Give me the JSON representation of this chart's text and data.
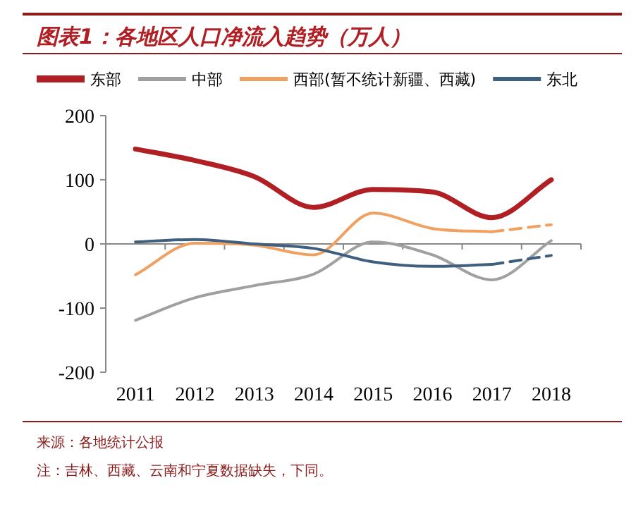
{
  "chart_data": {
    "type": "line",
    "title": "图表1：各地区人口净流入趋势（万人）",
    "categories": [
      "2011",
      "2012",
      "2013",
      "2014",
      "2015",
      "2016",
      "2017",
      "2018"
    ],
    "series": [
      {
        "name": "东部",
        "color": "#b01f24",
        "values": [
          148,
          130,
          105,
          57,
          85,
          81,
          41,
          100
        ]
      },
      {
        "name": "中部",
        "color": "#a0a0a0",
        "values": [
          -119,
          -84,
          -65,
          -47,
          3,
          -17,
          -56,
          5
        ]
      },
      {
        "name": "西部(暂不统计新疆、西藏)",
        "color": "#f0a060",
        "values": [
          -48,
          1,
          -2,
          -17,
          48,
          24,
          19,
          null
        ]
      },
      {
        "color": "#f0a060",
        "line_style": "dashed",
        "values": [
          null,
          null,
          null,
          null,
          null,
          null,
          19,
          30
        ]
      },
      {
        "name": "东北",
        "color": "#3f5f7f",
        "values": [
          3,
          7,
          0,
          -7,
          -28,
          -35,
          -32,
          null
        ]
      },
      {
        "color": "#3f5f7f",
        "line_style": "dashed",
        "values": [
          null,
          null,
          null,
          null,
          null,
          null,
          -32,
          -18
        ]
      }
    ],
    "ylim": [
      -200,
      200
    ],
    "yticks": [
      -200,
      -100,
      0,
      100,
      200
    ],
    "legend": "top",
    "marker": "none",
    "line_style": "solid",
    "annotations": [
      "来源：各地统计公报",
      "注：吉林、西藏、云南和宁夏数据缺失，下同。"
    ]
  }
}
